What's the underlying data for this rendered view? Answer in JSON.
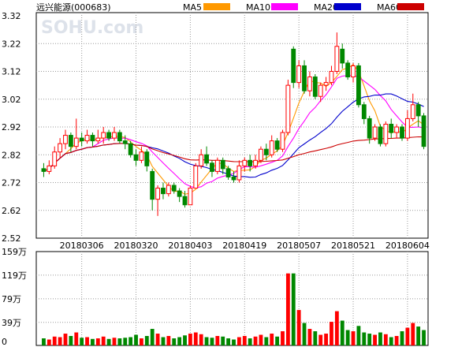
{
  "title": "远兴能源(000683)",
  "watermark": "SOHU.com",
  "legend": [
    {
      "label": "MA5",
      "color": "#FF9900"
    },
    {
      "label": "MA10",
      "color": "#FF00FF"
    },
    {
      "label": "MA20",
      "color": "#0000CC"
    },
    {
      "label": "MA60",
      "color": "#CC0000"
    }
  ],
  "colors": {
    "up": "#FF0000",
    "down": "#008800",
    "grid": "#999999"
  },
  "chart_data": {
    "type": "candlestick",
    "y_ticks": [
      "3.32",
      "3.22",
      "3.12",
      "3.02",
      "2.92",
      "2.82",
      "2.72",
      "2.62",
      "2.52"
    ],
    "ylim": [
      2.52,
      3.32
    ],
    "x_ticks": [
      {
        "label": "20180306",
        "index": 7
      },
      {
        "label": "20180320",
        "index": 17
      },
      {
        "label": "20180403",
        "index": 27
      },
      {
        "label": "20180419",
        "index": 37
      },
      {
        "label": "20180507",
        "index": 47
      },
      {
        "label": "20180521",
        "index": 57
      },
      {
        "label": "20180604",
        "index": 67
      }
    ],
    "volume_ticks": [
      "159万",
      "119万",
      "79万",
      "39万",
      "0"
    ],
    "volume_ylim": [
      0,
      159
    ],
    "candles": [
      [
        2.77,
        2.76,
        2.79,
        2.74
      ],
      [
        2.76,
        2.78,
        2.8,
        2.75
      ],
      [
        2.78,
        2.83,
        2.85,
        2.77
      ],
      [
        2.83,
        2.86,
        2.88,
        2.81
      ],
      [
        2.86,
        2.89,
        2.91,
        2.84
      ],
      [
        2.89,
        2.85,
        2.9,
        2.83
      ],
      [
        2.85,
        2.88,
        2.95,
        2.84
      ],
      [
        2.88,
        2.87,
        2.9,
        2.85
      ],
      [
        2.87,
        2.89,
        2.91,
        2.86
      ],
      [
        2.89,
        2.87,
        2.9,
        2.85
      ],
      [
        2.87,
        2.88,
        2.91,
        2.86
      ],
      [
        2.88,
        2.9,
        2.92,
        2.86
      ],
      [
        2.9,
        2.88,
        2.91,
        2.87
      ],
      [
        2.88,
        2.9,
        2.92,
        2.87
      ],
      [
        2.9,
        2.87,
        2.91,
        2.86
      ],
      [
        2.87,
        2.86,
        2.89,
        2.84
      ],
      [
        2.86,
        2.82,
        2.87,
        2.81
      ],
      [
        2.82,
        2.8,
        2.84,
        2.78
      ],
      [
        2.8,
        2.83,
        2.85,
        2.79
      ],
      [
        2.83,
        2.78,
        2.84,
        2.76
      ],
      [
        2.76,
        2.66,
        2.77,
        2.62
      ],
      [
        2.66,
        2.7,
        2.71,
        2.6
      ],
      [
        2.7,
        2.68,
        2.72,
        2.66
      ],
      [
        2.68,
        2.71,
        2.72,
        2.67
      ],
      [
        2.71,
        2.69,
        2.72,
        2.68
      ],
      [
        2.69,
        2.67,
        2.7,
        2.65
      ],
      [
        2.67,
        2.64,
        2.69,
        2.63
      ],
      [
        2.64,
        2.7,
        2.71,
        2.64
      ],
      [
        2.7,
        2.78,
        2.79,
        2.7
      ],
      [
        2.78,
        2.82,
        2.84,
        2.77
      ],
      [
        2.82,
        2.79,
        2.85,
        2.78
      ],
      [
        2.79,
        2.76,
        2.8,
        2.74
      ],
      [
        2.76,
        2.8,
        2.81,
        2.75
      ],
      [
        2.8,
        2.77,
        2.81,
        2.75
      ],
      [
        2.77,
        2.74,
        2.78,
        2.73
      ],
      [
        2.74,
        2.73,
        2.76,
        2.72
      ],
      [
        2.73,
        2.78,
        2.8,
        2.72
      ],
      [
        2.78,
        2.8,
        2.81,
        2.76
      ],
      [
        2.8,
        2.78,
        2.82,
        2.76
      ],
      [
        2.78,
        2.8,
        2.82,
        2.77
      ],
      [
        2.8,
        2.84,
        2.85,
        2.79
      ],
      [
        2.84,
        2.82,
        2.86,
        2.8
      ],
      [
        2.82,
        2.87,
        2.89,
        2.81
      ],
      [
        2.87,
        2.84,
        2.88,
        2.83
      ],
      [
        2.84,
        2.9,
        2.91,
        2.83
      ],
      [
        2.9,
        3.07,
        3.09,
        2.89
      ],
      [
        3.2,
        3.08,
        3.21,
        3.06
      ],
      [
        3.08,
        3.14,
        3.16,
        3.06
      ],
      [
        3.14,
        3.05,
        3.16,
        3.04
      ],
      [
        3.05,
        3.1,
        3.12,
        3.03
      ],
      [
        3.1,
        3.03,
        3.11,
        3.02
      ],
      [
        3.03,
        3.07,
        3.08,
        3.01
      ],
      [
        3.07,
        3.08,
        3.1,
        3.05
      ],
      [
        3.08,
        3.12,
        3.14,
        3.07
      ],
      [
        3.12,
        3.21,
        3.26,
        3.11
      ],
      [
        3.2,
        3.15,
        3.22,
        3.13
      ],
      [
        3.15,
        3.1,
        3.16,
        3.09
      ],
      [
        3.1,
        3.14,
        3.15,
        3.08
      ],
      [
        3.14,
        3.0,
        3.15,
        2.99
      ],
      [
        3.0,
        2.95,
        3.01,
        2.93
      ],
      [
        2.95,
        2.88,
        2.96,
        2.86
      ],
      [
        2.88,
        2.92,
        2.93,
        2.87
      ],
      [
        2.92,
        2.86,
        2.93,
        2.85
      ],
      [
        2.86,
        2.93,
        2.94,
        2.85
      ],
      [
        2.93,
        2.9,
        2.95,
        2.88
      ],
      [
        2.9,
        2.92,
        2.93,
        2.88
      ],
      [
        2.92,
        2.88,
        2.93,
        2.87
      ],
      [
        2.88,
        2.95,
        2.98,
        2.87
      ],
      [
        2.95,
        3.0,
        3.04,
        2.94
      ],
      [
        3.0,
        2.96,
        3.01,
        2.92
      ],
      [
        2.96,
        2.85,
        2.97,
        2.84
      ]
    ],
    "volumes": [
      12,
      10,
      15,
      14,
      20,
      16,
      22,
      13,
      14,
      11,
      12,
      15,
      11,
      13,
      12,
      13,
      14,
      18,
      12,
      16,
      28,
      20,
      14,
      16,
      12,
      14,
      17,
      20,
      22,
      19,
      14,
      13,
      16,
      15,
      12,
      10,
      14,
      16,
      12,
      15,
      18,
      14,
      20,
      15,
      24,
      122,
      122,
      60,
      38,
      28,
      24,
      18,
      20,
      40,
      58,
      42,
      26,
      24,
      33,
      22,
      20,
      18,
      22,
      19,
      14,
      16,
      24,
      30,
      38,
      32,
      26
    ]
  }
}
